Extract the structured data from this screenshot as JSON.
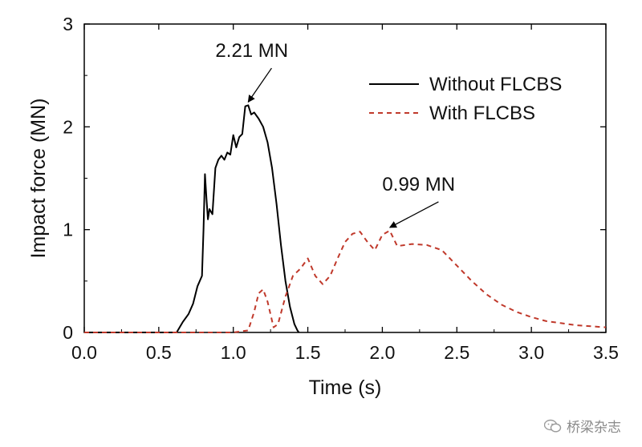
{
  "chart_data": {
    "type": "line",
    "title": "",
    "xlabel": "Time (s)",
    "ylabel": "Impact force (MN)",
    "xlim": [
      0,
      3.5
    ],
    "ylim": [
      0,
      3
    ],
    "xticks": [
      "0.0",
      "0.5",
      "1.0",
      "1.5",
      "2.0",
      "2.5",
      "3.0",
      "3.5"
    ],
    "yticks": [
      "0",
      "1",
      "2",
      "3"
    ],
    "legend_position": "top-right",
    "series": [
      {
        "name": "Without FLCBS",
        "style": "solid",
        "color": "#000000",
        "x": [
          0.0,
          0.5,
          0.62,
          0.66,
          0.7,
          0.73,
          0.76,
          0.79,
          0.8,
          0.81,
          0.82,
          0.83,
          0.84,
          0.86,
          0.88,
          0.9,
          0.92,
          0.94,
          0.96,
          0.98,
          1.0,
          1.02,
          1.04,
          1.06,
          1.08,
          1.1,
          1.12,
          1.14,
          1.17,
          1.2,
          1.23,
          1.26,
          1.29,
          1.32,
          1.35,
          1.38,
          1.41,
          1.43,
          1.44
        ],
        "y": [
          0,
          0,
          0,
          0.1,
          0.18,
          0.28,
          0.45,
          0.55,
          1.0,
          1.54,
          1.3,
          1.1,
          1.2,
          1.15,
          1.6,
          1.68,
          1.72,
          1.68,
          1.75,
          1.73,
          1.92,
          1.8,
          1.9,
          1.93,
          2.2,
          2.21,
          2.12,
          2.14,
          2.08,
          2.0,
          1.85,
          1.6,
          1.25,
          0.85,
          0.5,
          0.25,
          0.08,
          0.02,
          0
        ]
      },
      {
        "name": "With FLCBS",
        "style": "dashed",
        "color": "#c0392b",
        "x": [
          0.0,
          0.5,
          1.0,
          1.1,
          1.14,
          1.17,
          1.2,
          1.23,
          1.27,
          1.3,
          1.35,
          1.4,
          1.45,
          1.5,
          1.55,
          1.6,
          1.65,
          1.7,
          1.75,
          1.8,
          1.85,
          1.9,
          1.95,
          2.0,
          2.05,
          2.1,
          2.2,
          2.3,
          2.4,
          2.5,
          2.6,
          2.7,
          2.8,
          2.9,
          3.0,
          3.1,
          3.2,
          3.3,
          3.4,
          3.5
        ],
        "y": [
          0,
          0,
          0,
          0.02,
          0.2,
          0.38,
          0.42,
          0.3,
          0.05,
          0.08,
          0.35,
          0.55,
          0.62,
          0.72,
          0.55,
          0.47,
          0.55,
          0.72,
          0.88,
          0.96,
          0.98,
          0.88,
          0.8,
          0.95,
          0.99,
          0.84,
          0.86,
          0.85,
          0.8,
          0.65,
          0.5,
          0.37,
          0.27,
          0.2,
          0.15,
          0.11,
          0.09,
          0.07,
          0.06,
          0.05
        ]
      }
    ],
    "annotations": [
      {
        "text": "2.21 MN",
        "x": 1.1,
        "y": 2.21,
        "label_x": 0.88,
        "label_y": 2.68
      },
      {
        "text": "0.99 MN",
        "x": 2.05,
        "y": 0.99,
        "label_x": 2.0,
        "label_y": 1.38
      }
    ]
  },
  "watermark": {
    "text": "桥梁杂志"
  }
}
